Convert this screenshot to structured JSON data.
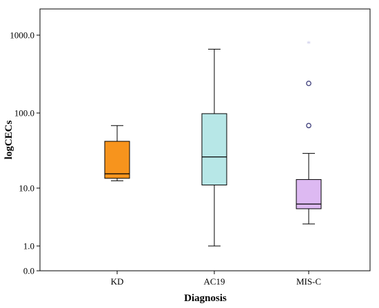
{
  "chart_data": {
    "type": "box",
    "title": "",
    "xlabel": "Diagnosis",
    "ylabel": "logCECs",
    "yticks": [
      "0.0",
      "1.0",
      "10.0",
      "100.0",
      "1000.0"
    ],
    "categories": [
      "KD",
      "AC19",
      "MIS-C"
    ],
    "boxes": [
      {
        "category": "KD",
        "color": "#F7941D",
        "min": 12.5,
        "q1": 13.5,
        "median": 15.5,
        "q3": 42,
        "max": 68,
        "outliers": [],
        "extremes": []
      },
      {
        "category": "AC19",
        "color": "#B7E7E7",
        "min": 1.0,
        "q1": 11,
        "median": 26,
        "q3": 98,
        "max": 660,
        "outliers": [],
        "extremes": []
      },
      {
        "category": "MIS-C",
        "color": "#DDB9F2",
        "min": 2.4,
        "q1": 4.4,
        "median": 5.3,
        "q3": 13,
        "max": 29,
        "outliers": [
          68,
          240
        ],
        "extremes": [
          780
        ]
      }
    ],
    "colors": {
      "outline": "#000000",
      "outlier_stroke": "#3d3d7a",
      "extreme_color": "#c7c7e8"
    }
  }
}
